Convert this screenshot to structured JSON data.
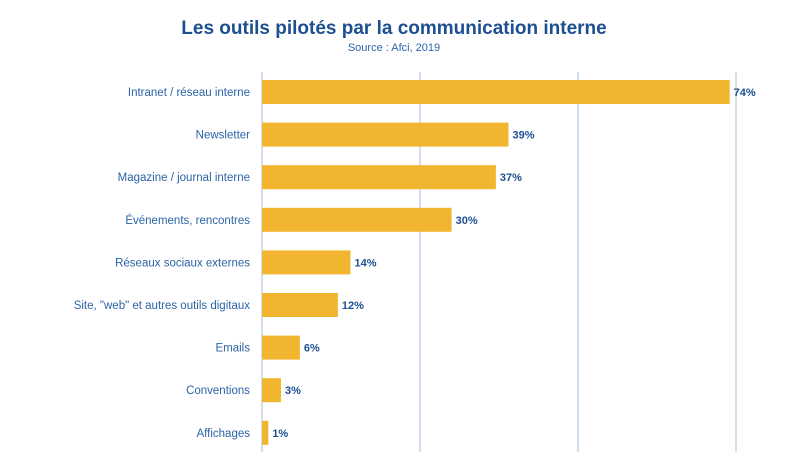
{
  "colors": {
    "bar": "#f1b52f",
    "grid": "#a7bfdc",
    "title": "#1d4f91",
    "label": "#2c63a6"
  },
  "chart_data": {
    "type": "bar",
    "orientation": "horizontal",
    "title": "Les outils pilotés par la communication interne",
    "subtitle": "Source : Afci, 2019",
    "categories": [
      "Intranet / réseau interne",
      "Newsletter",
      "Magazine / journal interne",
      "Événements, rencontres",
      "Réseaux sociaux externes",
      "Site, \"web\" et autres outils digitaux",
      "Emails",
      "Conventions",
      "Affichages"
    ],
    "values": [
      74,
      39,
      37,
      30,
      14,
      12,
      6,
      3,
      1
    ],
    "data_labels": [
      "74%",
      "39%",
      "37%",
      "30%",
      "14%",
      "12%",
      "6%",
      "3%",
      "1%"
    ],
    "xlim": [
      0,
      75
    ],
    "gridlines": [
      0,
      25,
      50,
      75
    ],
    "grid": true,
    "legend": "none"
  }
}
